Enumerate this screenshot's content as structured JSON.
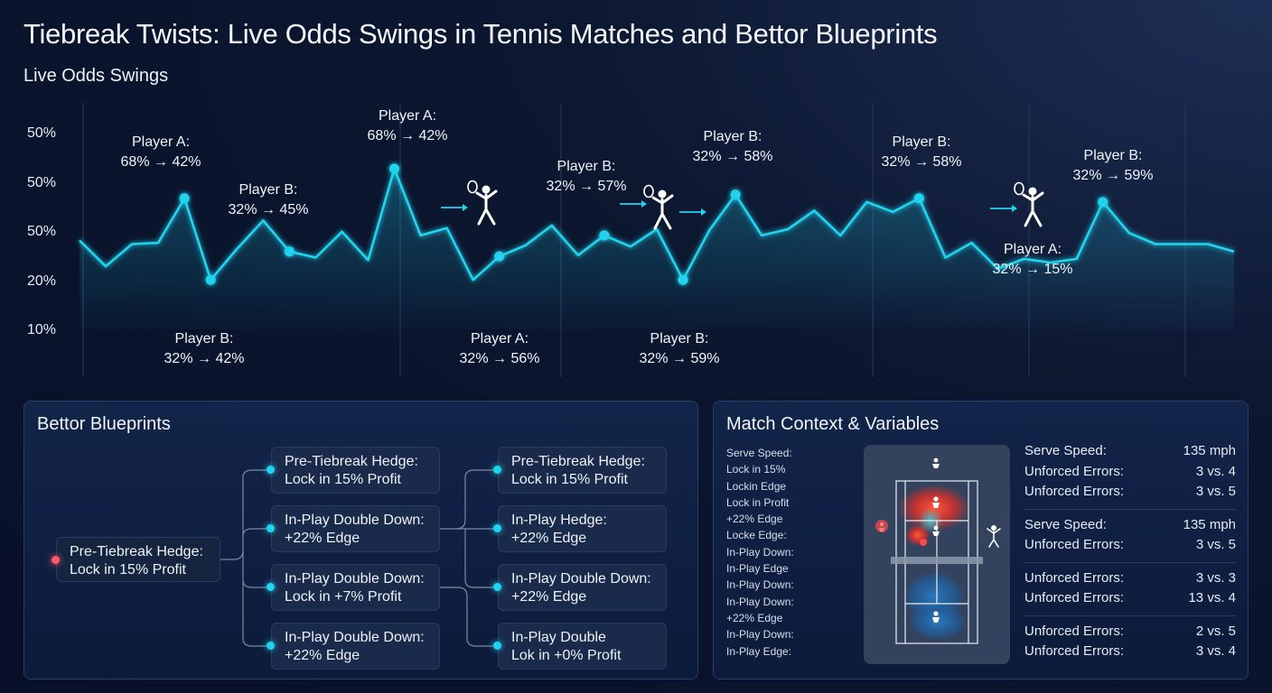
{
  "title": "Tiebreak Twists: Live Odds Swings in Tennis Matches and Bettor Blueprints",
  "chart_data": {
    "type": "line",
    "title": "Live Odds Swings",
    "y_tick_labels": [
      "50%",
      "50%",
      "50%",
      "20%",
      "10%"
    ],
    "series": [
      {
        "values": [
          0.72,
          0.51,
          0.69,
          0.7,
          1.06,
          0.4,
          0.65,
          0.88,
          0.63,
          0.58,
          0.79,
          0.56,
          1.3,
          0.76,
          0.82,
          0.4,
          0.59,
          0.68,
          0.84,
          0.6,
          0.76,
          0.67,
          0.81,
          0.4,
          0.8,
          1.09,
          0.76,
          0.81,
          0.96,
          0.76,
          1.03,
          0.95,
          1.06,
          0.58,
          0.7,
          0.49,
          0.57,
          0.54,
          0.57,
          1.03,
          0.78,
          0.69,
          0.69,
          0.69,
          0.63
        ]
      }
    ],
    "annotations": [
      {
        "player": "Player A:",
        "change": "68% → 42%"
      },
      {
        "player": "Player B:",
        "change": "32% → 42%"
      },
      {
        "player": "Player B:",
        "change": "32% → 45%"
      },
      {
        "player": "Player A:",
        "change": "68% → 42%"
      },
      {
        "player": "Player A:",
        "change": "32% → 56%"
      },
      {
        "player": "Player B:",
        "change": "32% → 57%"
      },
      {
        "player": "Player B:",
        "change": "32% → 59%"
      },
      {
        "player": "Player B:",
        "change": "32% → 58%"
      },
      {
        "player": "Player B:",
        "change": "32% → 58%"
      },
      {
        "player": "Player A:",
        "change": "32% → 15%"
      },
      {
        "player": "Player B:",
        "change": "32% → 59%"
      }
    ],
    "line_color": "#22d3ee",
    "grid": true
  },
  "blueprints": {
    "title": "Bettor Blueprints",
    "root": {
      "line1": "Pre-Tiebreak Hedge:",
      "line2": "Lock in 15% Profit"
    },
    "col1": [
      {
        "line1": "Pre-Tiebreak Hedge:",
        "line2": "Lock in 15% Profit"
      },
      {
        "line1": "In-Play Double Down:",
        "line2": "+22% Edge"
      },
      {
        "line1": "In-Play Double Down:",
        "line2": "Lock in +7% Profit"
      },
      {
        "line1": "In-Play Double Down:",
        "line2": "+22% Edge"
      }
    ],
    "col2": [
      {
        "line1": "Pre-Tiebreak Hedge:",
        "line2": "Lock in 15% Profit"
      },
      {
        "line1": "In-Play Hedge:",
        "line2": "+22% Edge"
      },
      {
        "line1": "In-Play Double Down:",
        "line2": "+22% Edge"
      },
      {
        "line1": "In-Play Double",
        "line2": "Lok in +0% Profit"
      }
    ]
  },
  "context": {
    "title": "Match Context & Variables",
    "notes": [
      "Serve Speed:",
      "Lock in 15%",
      "Lockin Edge",
      "Lock in Profit",
      "+22% Edge",
      "Locke Edge:",
      "In-Play Down:",
      "In-Play Edge",
      "In-Play Down:",
      "In-Play Down:",
      "+22% Edge",
      "In-Play Down:",
      "In-Play Edge:"
    ],
    "stat_groups": [
      [
        [
          "Serve Speed:",
          "135 mph"
        ],
        [
          "Unforced Errors:",
          "3 vs. 4"
        ],
        [
          "Unforced Errors:",
          "3 vs. 5"
        ]
      ],
      [
        [
          "Serve Speed:",
          "135 mph"
        ],
        [
          "Unforced Errors:",
          "3 vs. 5"
        ]
      ],
      [
        [
          "Unforced Errors:",
          "3 vs. 3"
        ],
        [
          "Unforced Errors:",
          "13 vs. 4"
        ]
      ],
      [
        [
          "Unforced Errors:",
          "2 vs. 5"
        ],
        [
          "Unforced Errors:",
          "3 vs. 4"
        ]
      ]
    ]
  }
}
